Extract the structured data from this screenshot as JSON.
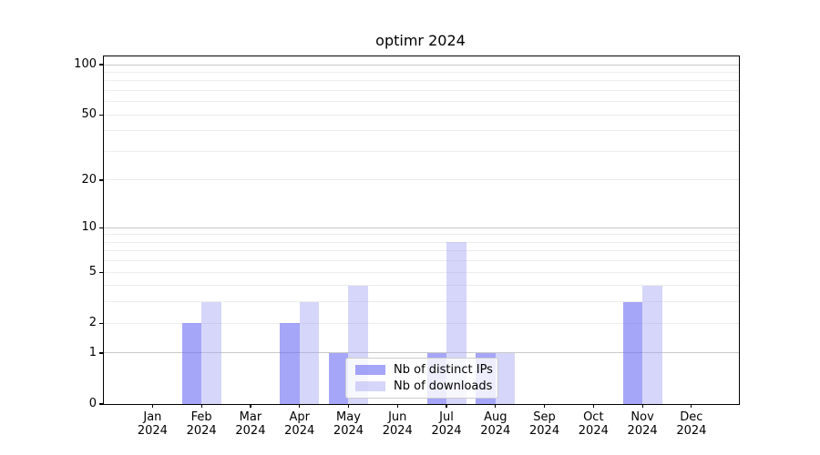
{
  "title": "optimr 2024",
  "chart_data": {
    "type": "bar",
    "title": "optimr 2024",
    "categories": [
      "Jan 2024",
      "Feb 2024",
      "Mar 2024",
      "Apr 2024",
      "May 2024",
      "Jun 2024",
      "Jul 2024",
      "Aug 2024",
      "Sep 2024",
      "Oct 2024",
      "Nov 2024",
      "Dec 2024"
    ],
    "x_tick_month_line": [
      "Jan",
      "Feb",
      "Mar",
      "Apr",
      "May",
      "Jun",
      "Jul",
      "Aug",
      "Sep",
      "Oct",
      "Nov",
      "Dec"
    ],
    "x_tick_year_line": "2024",
    "series": [
      {
        "name": "Nb of distinct IPs",
        "color": "rgba(107, 107, 243, 0.60)",
        "values": [
          0,
          2,
          0,
          2,
          1,
          0,
          1,
          1,
          0,
          0,
          3,
          0
        ]
      },
      {
        "name": "Nb of downloads",
        "color": "rgba(165, 165, 245, 0.45)",
        "values": [
          0,
          3,
          0,
          3,
          4,
          0,
          8,
          1,
          0,
          0,
          4,
          0
        ]
      }
    ],
    "xlabel": "",
    "ylabel": "",
    "y_axis": {
      "scale": "log1p",
      "tick_values": [
        0,
        1,
        2,
        5,
        10,
        20,
        50,
        100
      ],
      "tick_labels": [
        "0",
        "1",
        "2",
        "5",
        "10",
        "20",
        "50",
        "100"
      ],
      "major_gridlines": [
        1,
        10,
        100
      ],
      "minor_gridlines": [
        2,
        3,
        4,
        5,
        6,
        7,
        8,
        9,
        20,
        30,
        40,
        50,
        60,
        70,
        80,
        90
      ],
      "ylim": [
        0,
        110
      ]
    },
    "grid": "on",
    "legend_position": "lower center"
  },
  "colors": {
    "gridline_major": "#c9c9c9",
    "gridline_minor": "#ececec",
    "axis": "#000000",
    "legend_border": "#cccccc",
    "background": "#ffffff"
  }
}
